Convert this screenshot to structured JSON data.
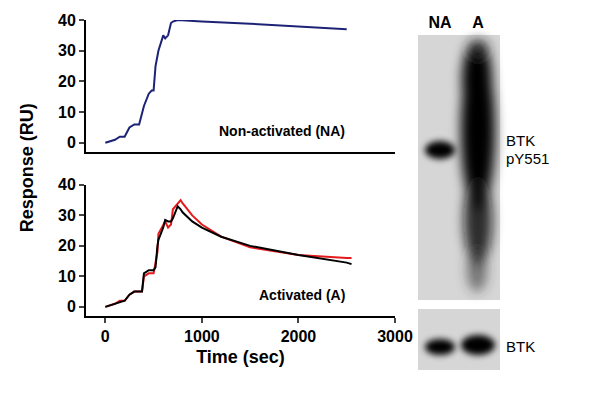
{
  "chart_data": [
    {
      "type": "line",
      "ylabel": "Response (RU)",
      "annotation": "Non-activated (NA)",
      "xlim": [
        -200,
        3000
      ],
      "ylim": [
        -3,
        40
      ],
      "yticks": [
        0,
        10,
        20,
        30,
        40
      ],
      "tick_labels": "y",
      "x": [
        0,
        100,
        150,
        200,
        250,
        300,
        350,
        400,
        450,
        480,
        500,
        520,
        550,
        580,
        600,
        620,
        650,
        680,
        700,
        750,
        1000,
        1500,
        2000,
        2500
      ],
      "series": [
        {
          "color": "#1c2376",
          "values": [
            0,
            1,
            2,
            2,
            5,
            6,
            6,
            12,
            16,
            17,
            17,
            25,
            30,
            33,
            35,
            34,
            35,
            39,
            39.5,
            40,
            39.5,
            38.8,
            38,
            37
          ]
        }
      ]
    },
    {
      "type": "line",
      "xlabel": "Time (sec)",
      "annotation": "Activated (A)",
      "xlim": [
        -200,
        3000
      ],
      "ylim": [
        -3,
        40
      ],
      "xticks": [
        0,
        1000,
        2000,
        3000
      ],
      "yticks": [
        0,
        10,
        20,
        30,
        40
      ],
      "x": [
        0,
        100,
        150,
        200,
        250,
        300,
        350,
        380,
        400,
        450,
        500,
        520,
        540,
        550,
        600,
        620,
        650,
        680,
        700,
        750,
        780,
        800,
        900,
        1000,
        1200,
        1500,
        2000,
        2500,
        2550
      ],
      "series": [
        {
          "color": "#e41a1c",
          "values": [
            0,
            1,
            2,
            2,
            4,
            5,
            5,
            5,
            10,
            11,
            11,
            14,
            18,
            24,
            27,
            28,
            26,
            27,
            32,
            34,
            35,
            34,
            30,
            27,
            23,
            19.5,
            17,
            16,
            16
          ]
        },
        {
          "color": "#000000",
          "values": [
            0,
            1,
            1.5,
            2,
            4,
            5,
            5,
            5,
            11,
            12,
            12,
            13,
            20,
            22,
            26,
            28.5,
            28,
            28,
            29,
            33,
            32,
            31,
            28,
            26,
            23,
            20,
            17,
            14.5,
            14
          ]
        }
      ]
    }
  ],
  "blot": {
    "lanes": [
      "NA",
      "A"
    ],
    "panels": [
      {
        "label": "BTK\npY551"
      },
      {
        "label": "BTK"
      }
    ]
  }
}
